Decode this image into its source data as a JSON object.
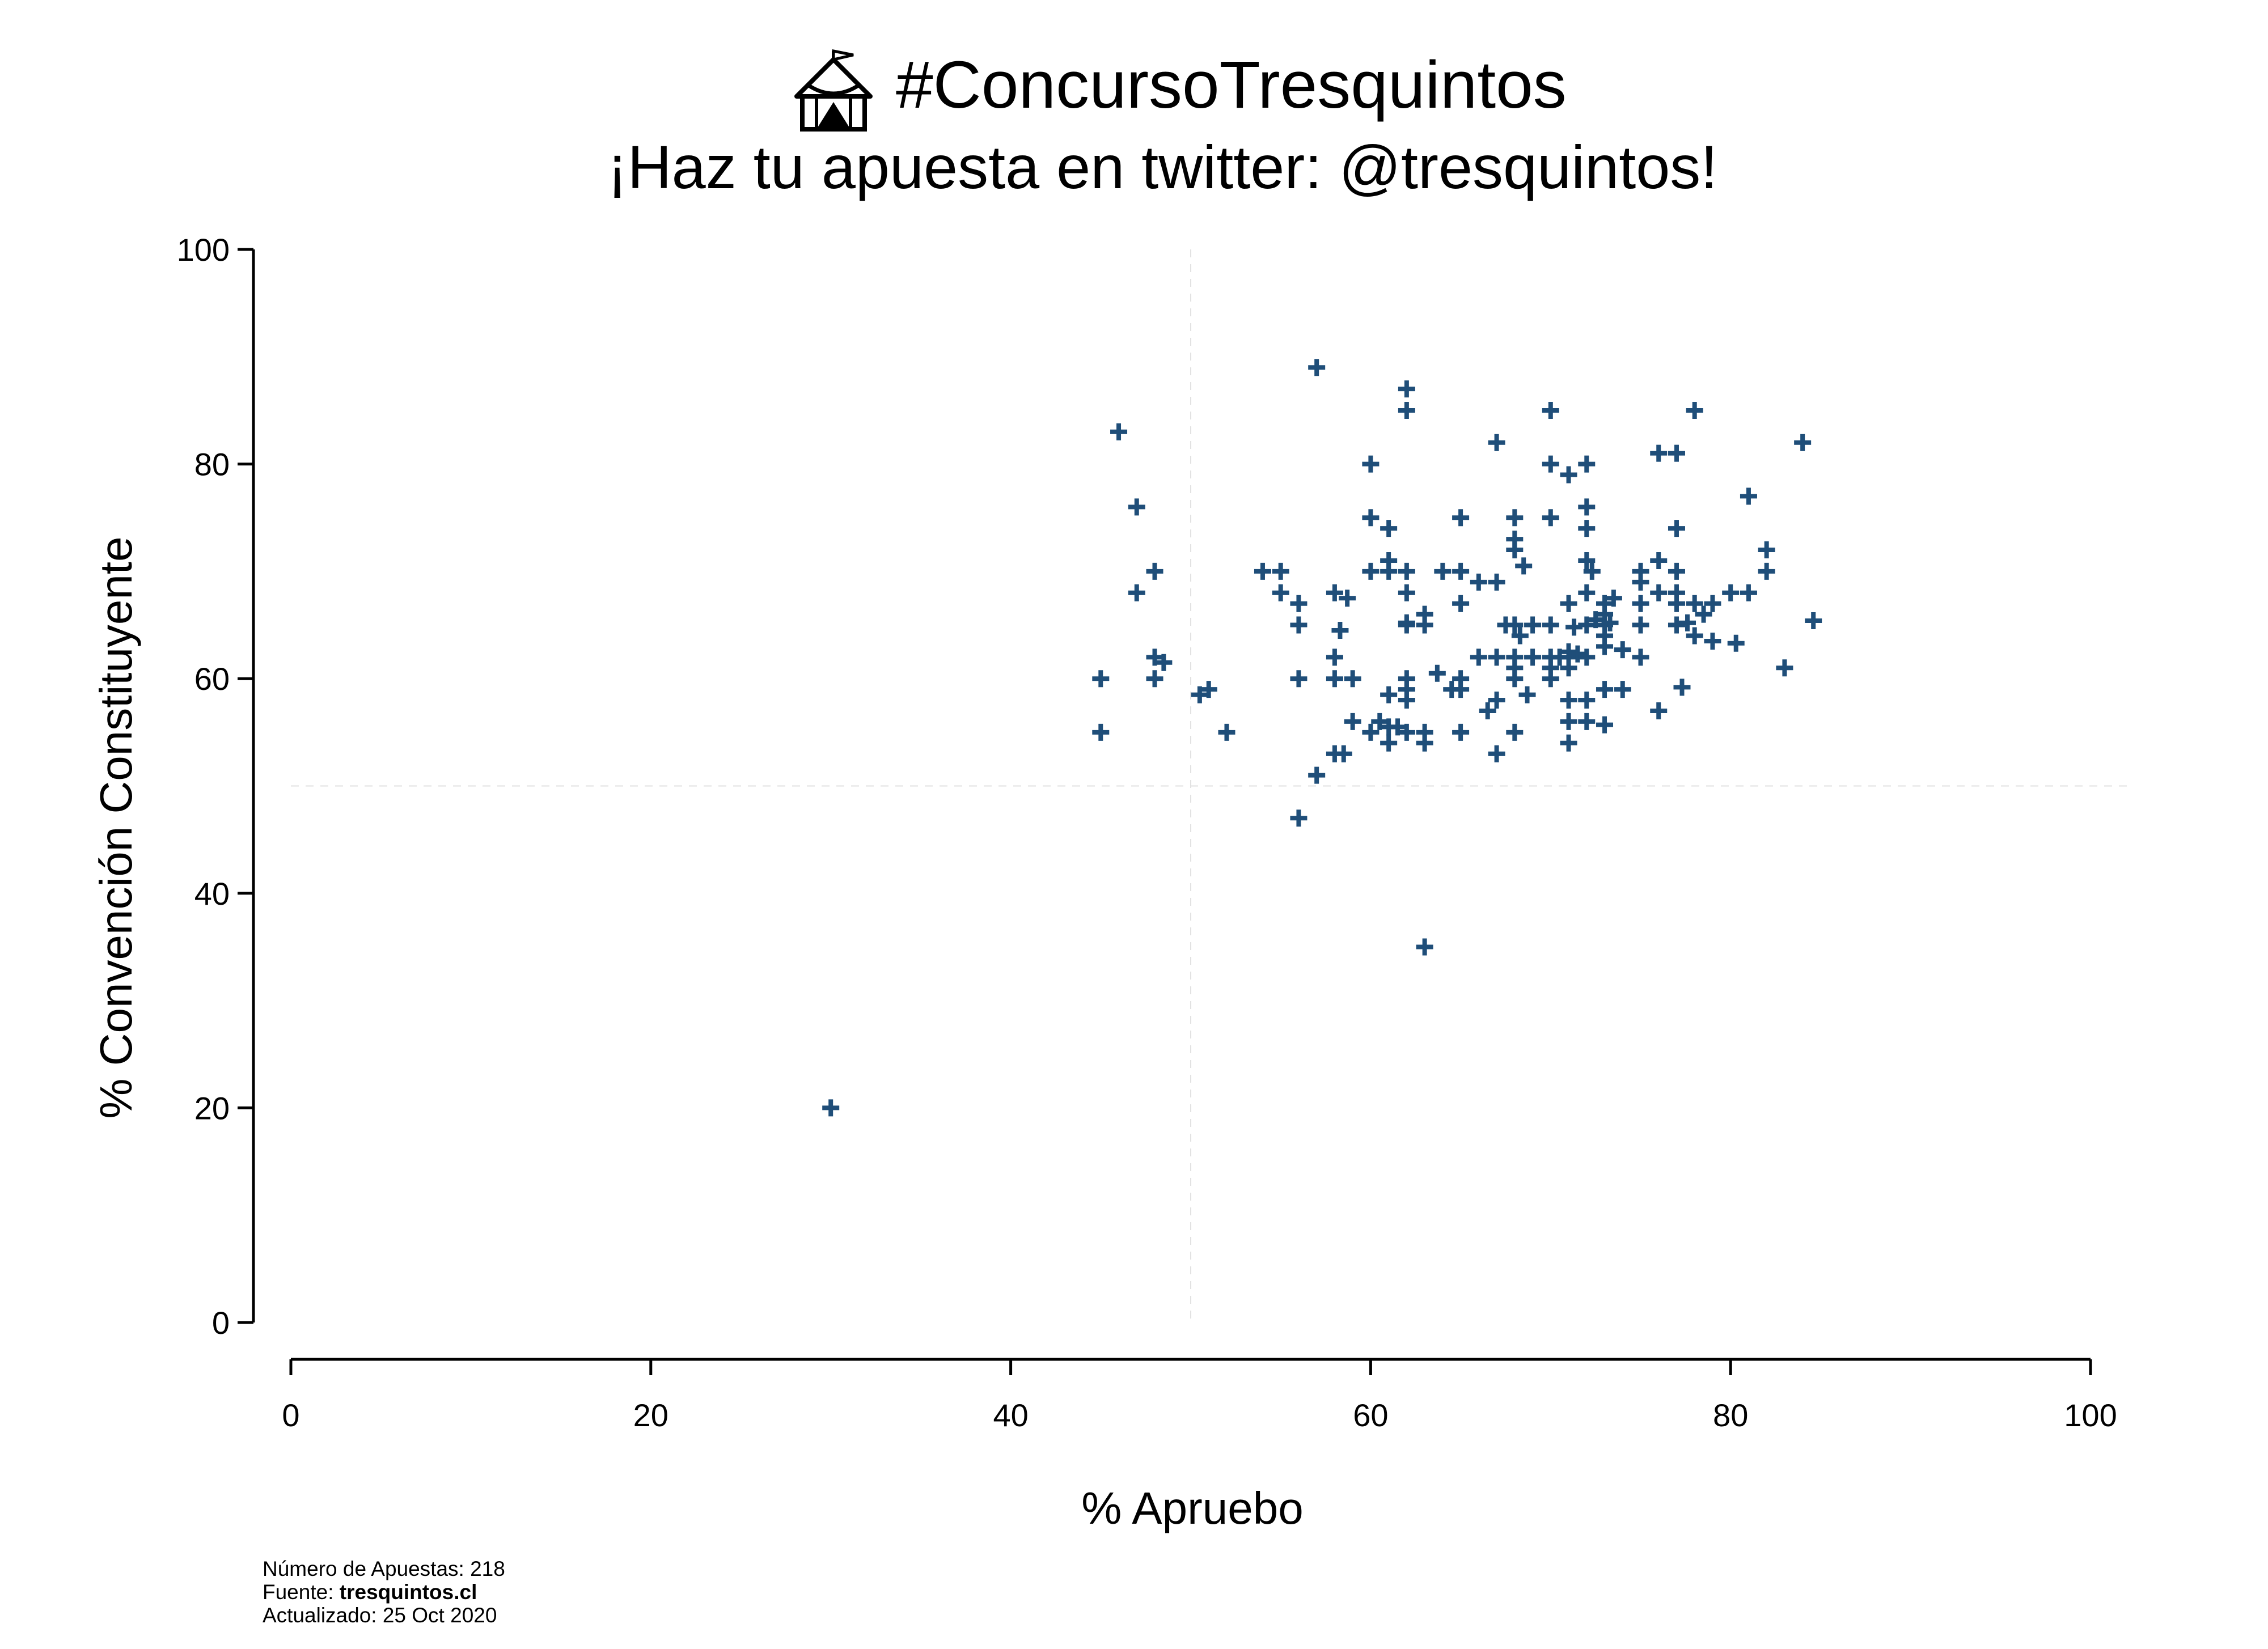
{
  "chart_data": {
    "type": "scatter",
    "title": "#ConcursoTresquintos",
    "title_icon": "circus-tent-icon",
    "subtitle": "¡Haz tu apuesta en twitter: @tresquintos!",
    "xlabel": "% Apruebo",
    "ylabel": "% Convención Constituyente",
    "xlim": [
      0,
      100
    ],
    "ylim": [
      0,
      100
    ],
    "x_ticks": [
      "0",
      "20",
      "40",
      "60",
      "80",
      "100"
    ],
    "y_ticks": [
      "0",
      "20",
      "40",
      "60",
      "80",
      "100"
    ],
    "grid": false,
    "reference_lines": {
      "x": 50,
      "y": 50
    },
    "marker": "plus",
    "color": "#1f4e79",
    "points": [
      [
        30,
        20
      ],
      [
        45,
        60
      ],
      [
        45,
        55
      ],
      [
        46,
        83
      ],
      [
        47,
        76
      ],
      [
        47,
        68
      ],
      [
        48,
        70
      ],
      [
        48,
        62
      ],
      [
        48,
        60
      ],
      [
        48.5,
        61.5
      ],
      [
        50.5,
        58.5
      ],
      [
        51,
        59
      ],
      [
        52,
        55
      ],
      [
        54,
        70
      ],
      [
        55,
        70
      ],
      [
        55,
        68
      ],
      [
        56,
        67
      ],
      [
        56,
        65
      ],
      [
        56,
        60
      ],
      [
        56,
        47
      ],
      [
        57,
        89
      ],
      [
        57,
        51
      ],
      [
        58,
        68
      ],
      [
        58,
        62
      ],
      [
        58,
        60
      ],
      [
        58,
        53
      ],
      [
        58.3,
        64.5
      ],
      [
        58.5,
        53
      ],
      [
        58.7,
        67.5
      ],
      [
        59,
        60
      ],
      [
        59,
        56
      ],
      [
        60,
        80
      ],
      [
        60,
        75
      ],
      [
        60,
        70
      ],
      [
        60,
        55
      ],
      [
        60.5,
        56
      ],
      [
        61,
        74
      ],
      [
        61,
        71
      ],
      [
        61,
        70
      ],
      [
        61,
        58.5
      ],
      [
        61,
        55.5
      ],
      [
        61,
        54
      ],
      [
        61.5,
        55.5
      ],
      [
        62,
        87
      ],
      [
        62,
        85
      ],
      [
        62,
        70
      ],
      [
        62,
        68
      ],
      [
        62,
        65
      ],
      [
        62,
        60
      ],
      [
        62,
        59
      ],
      [
        62,
        58
      ],
      [
        62,
        55
      ],
      [
        62,
        65.2
      ],
      [
        63,
        66
      ],
      [
        63,
        65
      ],
      [
        63,
        55
      ],
      [
        63,
        54
      ],
      [
        63,
        35
      ],
      [
        63.7,
        60.5
      ],
      [
        64,
        70
      ],
      [
        64.5,
        59
      ],
      [
        65,
        75
      ],
      [
        65,
        70
      ],
      [
        65,
        67
      ],
      [
        65,
        60
      ],
      [
        65,
        59
      ],
      [
        65,
        55
      ],
      [
        66,
        69
      ],
      [
        66,
        62
      ],
      [
        66.5,
        57
      ],
      [
        67,
        82
      ],
      [
        67,
        69
      ],
      [
        67,
        62
      ],
      [
        67,
        58
      ],
      [
        67,
        53
      ],
      [
        67.5,
        65
      ],
      [
        68,
        75
      ],
      [
        68,
        73
      ],
      [
        68,
        72
      ],
      [
        68,
        65
      ],
      [
        68,
        62
      ],
      [
        68,
        61
      ],
      [
        68,
        60
      ],
      [
        68,
        55
      ],
      [
        68.3,
        64
      ],
      [
        68.5,
        70.5
      ],
      [
        68.7,
        58.5
      ],
      [
        69,
        65
      ],
      [
        69,
        62
      ],
      [
        70,
        85
      ],
      [
        70,
        80
      ],
      [
        70,
        75
      ],
      [
        70,
        65
      ],
      [
        70,
        62
      ],
      [
        70,
        61
      ],
      [
        70,
        60
      ],
      [
        70.5,
        62
      ],
      [
        71,
        79
      ],
      [
        71,
        67
      ],
      [
        71,
        62.5
      ],
      [
        71,
        62
      ],
      [
        71,
        61
      ],
      [
        71,
        58
      ],
      [
        71,
        56
      ],
      [
        71,
        54
      ],
      [
        71.3,
        64.8
      ],
      [
        71.5,
        62.3
      ],
      [
        72,
        80
      ],
      [
        72,
        76
      ],
      [
        72,
        74
      ],
      [
        72,
        71
      ],
      [
        72,
        68
      ],
      [
        72,
        65
      ],
      [
        72,
        62
      ],
      [
        72,
        58
      ],
      [
        72,
        56
      ],
      [
        72.3,
        70
      ],
      [
        72.5,
        65.5
      ],
      [
        73,
        67
      ],
      [
        73,
        66
      ],
      [
        73,
        65
      ],
      [
        73,
        64
      ],
      [
        73,
        63
      ],
      [
        73,
        59
      ],
      [
        73,
        55.7
      ],
      [
        73.3,
        65.2
      ],
      [
        73.5,
        67.5
      ],
      [
        74,
        59
      ],
      [
        74,
        62.7
      ],
      [
        75,
        70
      ],
      [
        75,
        69
      ],
      [
        75,
        67
      ],
      [
        75,
        65
      ],
      [
        75,
        62
      ],
      [
        76,
        81
      ],
      [
        76,
        71
      ],
      [
        76,
        68
      ],
      [
        76,
        57
      ],
      [
        77,
        81
      ],
      [
        77,
        74
      ],
      [
        77,
        70
      ],
      [
        77,
        68
      ],
      [
        77,
        67
      ],
      [
        77,
        65
      ],
      [
        77.3,
        59.2
      ],
      [
        77.6,
        65.2
      ],
      [
        78,
        85
      ],
      [
        78,
        67
      ],
      [
        78,
        64
      ],
      [
        78.5,
        66
      ],
      [
        79,
        67
      ],
      [
        79,
        63.5
      ],
      [
        80,
        68
      ],
      [
        80.3,
        63.3
      ],
      [
        81,
        77
      ],
      [
        81,
        68
      ],
      [
        82,
        72
      ],
      [
        82,
        70
      ],
      [
        83,
        61
      ],
      [
        84,
        82
      ],
      [
        84.6,
        65.4
      ]
    ]
  },
  "footer": {
    "count_line": "Número de Apuestas: 218",
    "source_prefix": "Fuente: ",
    "source_name": "tresquintos.cl",
    "updated_line": "Actualizado: 25 Oct 2020"
  }
}
